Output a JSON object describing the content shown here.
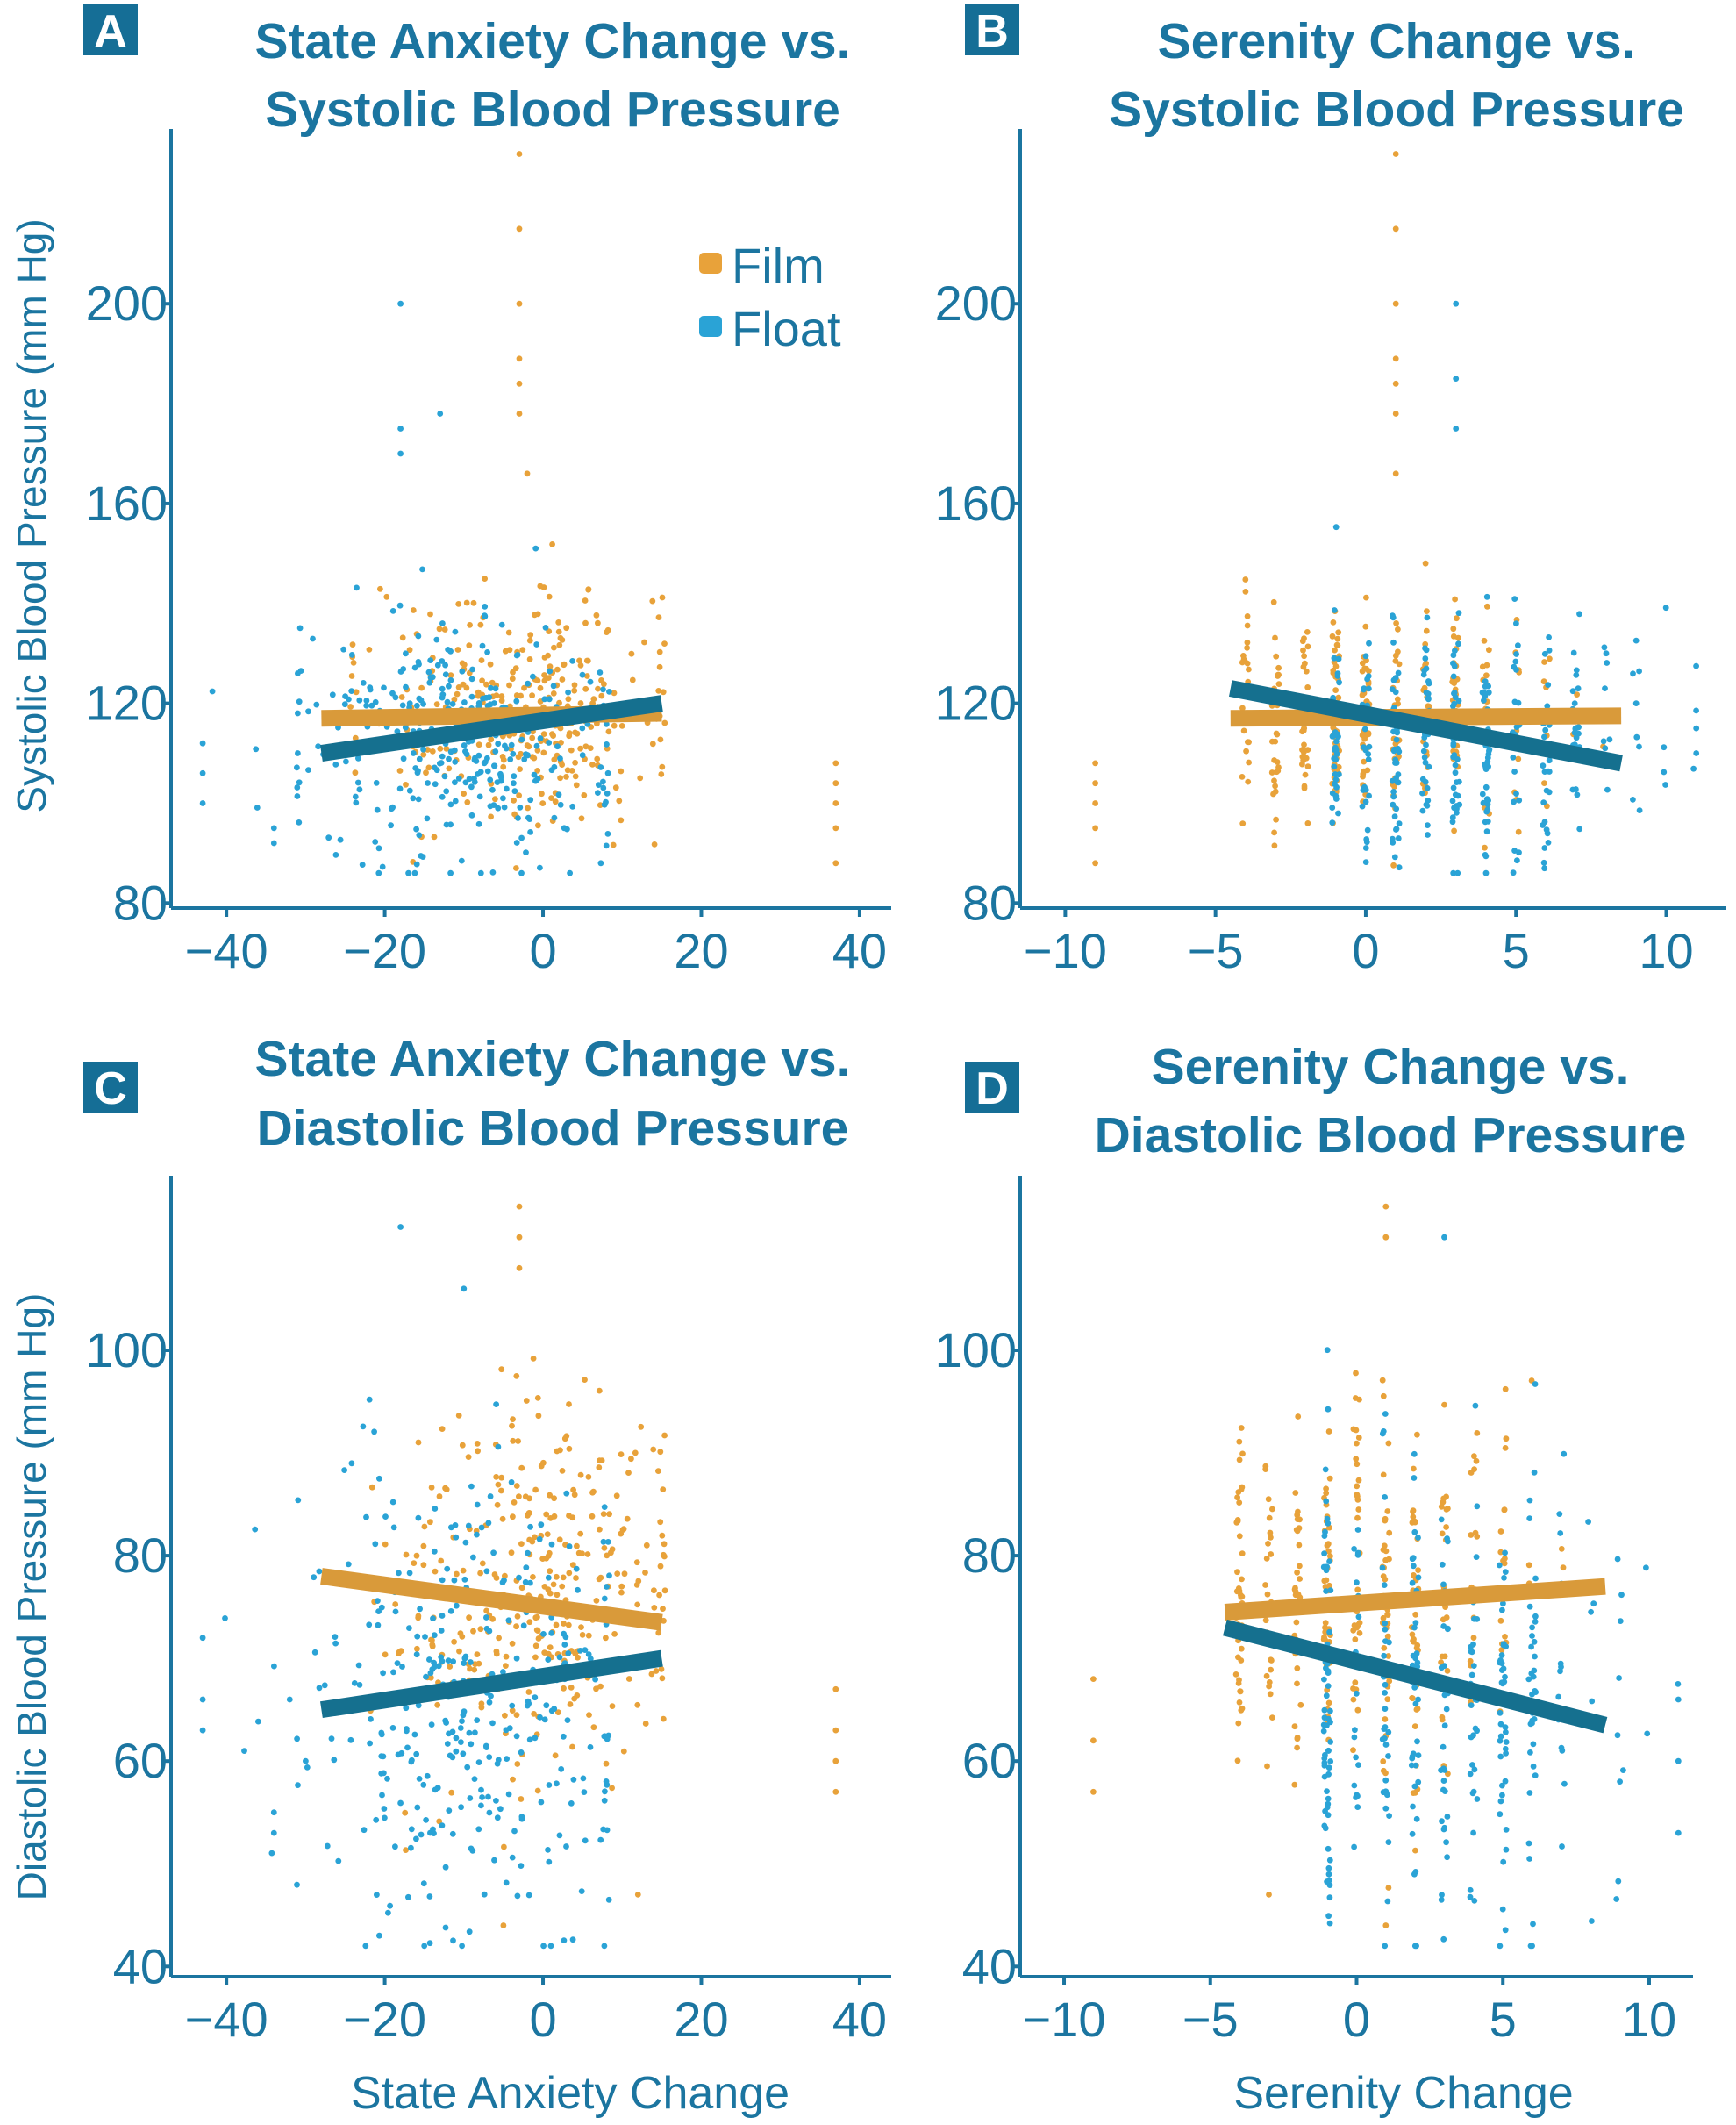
{
  "colors": {
    "film": "#E8A23A",
    "float": "#2AA3D6",
    "film_line": "#D99A3A",
    "float_line": "#15708F",
    "axis": "#1B75A0",
    "badge": "#156E96"
  },
  "legend": {
    "items": [
      "Film",
      "Float"
    ]
  },
  "chart_data": [
    {
      "type": "scatter",
      "panel_label": "A",
      "title": "State Anxiety Change vs.",
      "title2": "Systolic Blood Pressure",
      "xlabel": "",
      "ylabel": "Systolic Blood Pressure (mm Hg)",
      "xlim": [
        -47,
        44
      ],
      "ylim": [
        79,
        235
      ],
      "xticks": [
        -40,
        -20,
        0,
        20,
        40
      ],
      "yticks": [
        80,
        120,
        160,
        200
      ],
      "legend_position": "top-right",
      "series": [
        {
          "name": "Film",
          "x_center": -2,
          "x_spread": 10,
          "y_center": 118,
          "y_spread": 11,
          "x_min": -24,
          "x_max": 15,
          "y_min": 87,
          "y_max": 160,
          "outliers": [
            [
              -3,
              230
            ],
            [
              -3,
              215
            ],
            [
              -3,
              200
            ],
            [
              -3,
              189
            ],
            [
              -3,
              184
            ],
            [
              -3,
              178
            ],
            [
              -2,
              166
            ],
            [
              37,
              108
            ],
            [
              37,
              104
            ],
            [
              37,
              100
            ],
            [
              37,
              95
            ],
            [
              37,
              88
            ]
          ],
          "fit": {
            "x": [
              -28,
              15
            ],
            "y": [
              117,
              118
            ]
          }
        },
        {
          "name": "Float",
          "x_center": -10,
          "x_spread": 10,
          "y_center": 112,
          "y_spread": 12,
          "x_min": -44,
          "x_max": 8,
          "y_min": 86,
          "y_max": 158,
          "outliers": [
            [
              -18,
              200
            ],
            [
              -18,
              175
            ],
            [
              -18,
              170
            ],
            [
              -13,
              178
            ],
            [
              -43,
              112
            ],
            [
              -43,
              106
            ],
            [
              -43,
              100
            ],
            [
              -34,
              95
            ],
            [
              -34,
              92
            ],
            [
              -31,
              126
            ],
            [
              -31,
              118
            ],
            [
              -31,
              110
            ]
          ],
          "fit": {
            "x": [
              -28,
              15
            ],
            "y": [
              110,
              120
            ]
          }
        }
      ]
    },
    {
      "type": "scatter",
      "panel_label": "B",
      "title": "Serenity Change vs.",
      "title2": "Systolic Blood Pressure",
      "xlabel": "",
      "ylabel": "",
      "xlim": [
        -11.5,
        12
      ],
      "ylim": [
        79,
        235
      ],
      "xticks": [
        -10,
        -5,
        0,
        5,
        10
      ],
      "yticks": [
        80,
        120,
        160,
        200
      ],
      "series": [
        {
          "name": "Film",
          "x_center": 0,
          "x_spread": 3,
          "y_center": 118,
          "y_spread": 11,
          "x_min": -4,
          "x_max": 8,
          "y_min": 87,
          "y_max": 160,
          "outliers": [
            [
              1,
              230
            ],
            [
              1,
              215
            ],
            [
              1,
              200
            ],
            [
              1,
              189
            ],
            [
              1,
              184
            ],
            [
              1,
              178
            ],
            [
              1,
              166
            ],
            [
              -9,
              108
            ],
            [
              -9,
              104
            ],
            [
              -9,
              100
            ],
            [
              -9,
              95
            ],
            [
              -9,
              88
            ]
          ],
          "fit": {
            "x": [
              -4.5,
              8.5
            ],
            "y": [
              117,
              117.5
            ]
          }
        },
        {
          "name": "Float",
          "x_center": 3,
          "x_spread": 3,
          "y_center": 112,
          "y_spread": 12,
          "x_min": -1,
          "x_max": 11,
          "y_min": 86,
          "y_max": 158,
          "outliers": [
            [
              3,
              200
            ],
            [
              3,
              185
            ],
            [
              3,
              175
            ],
            [
              11,
              115
            ],
            [
              11,
              110
            ],
            [
              9,
              120
            ],
            [
              8,
              130
            ]
          ],
          "fit": {
            "x": [
              -4.5,
              8.5
            ],
            "y": [
              123,
              108
            ]
          }
        }
      ]
    },
    {
      "type": "scatter",
      "panel_label": "C",
      "title": "State Anxiety Change vs.",
      "title2": "Diastolic Blood Pressure",
      "xlabel": "State Anxiety Change",
      "ylabel": "Diastolic Blood Pressure (mm Hg)",
      "xlim": [
        -47,
        44
      ],
      "ylim": [
        39,
        117
      ],
      "xticks": [
        -40,
        -20,
        0,
        20,
        40
      ],
      "yticks": [
        40,
        60,
        80,
        100
      ],
      "series": [
        {
          "name": "Film",
          "x_center": -2,
          "x_spread": 10,
          "y_center": 75,
          "y_spread": 9,
          "x_min": -22,
          "x_max": 15,
          "y_min": 44,
          "y_max": 110,
          "outliers": [
            [
              -3,
              114
            ],
            [
              -3,
              111
            ],
            [
              -3,
              108
            ],
            [
              37,
              67
            ],
            [
              37,
              63
            ],
            [
              37,
              60
            ],
            [
              37,
              57
            ],
            [
              12,
              47
            ],
            [
              -5,
              44
            ]
          ],
          "fit": {
            "x": [
              -28,
              15
            ],
            "y": [
              78,
              73.5
            ]
          }
        },
        {
          "name": "Float",
          "x_center": -10,
          "x_spread": 10,
          "y_center": 66,
          "y_spread": 11,
          "x_min": -44,
          "x_max": 8,
          "y_min": 42,
          "y_max": 106,
          "outliers": [
            [
              -18,
              112
            ],
            [
              -10,
              106
            ],
            [
              -43,
              72
            ],
            [
              -43,
              66
            ],
            [
              -43,
              63
            ],
            [
              -34,
              55
            ],
            [
              -34,
              53
            ],
            [
              -32,
              66
            ],
            [
              -30,
              60
            ],
            [
              -15,
              42
            ]
          ],
          "fit": {
            "x": [
              -28,
              15
            ],
            "y": [
              65,
              70
            ]
          }
        }
      ]
    },
    {
      "type": "scatter",
      "panel_label": "D",
      "title": "Serenity Change vs.",
      "title2": "Diastolic Blood Pressure",
      "xlabel": "Serenity Change",
      "ylabel": "",
      "xlim": [
        -11.5,
        11.5
      ],
      "ylim": [
        39,
        117
      ],
      "xticks": [
        -10,
        -5,
        0,
        5,
        10
      ],
      "yticks": [
        40,
        60,
        80,
        100
      ],
      "series": [
        {
          "name": "Film",
          "x_center": 0,
          "x_spread": 3,
          "y_center": 76,
          "y_spread": 9,
          "x_min": -4,
          "x_max": 8,
          "y_min": 44,
          "y_max": 110,
          "outliers": [
            [
              1,
              114
            ],
            [
              1,
              111
            ],
            [
              -9,
              68
            ],
            [
              -9,
              62
            ],
            [
              -9,
              57
            ],
            [
              -3,
              47
            ],
            [
              1,
              44
            ]
          ],
          "fit": {
            "x": [
              -4.5,
              8.5
            ],
            "y": [
              74.5,
              77
            ]
          }
        },
        {
          "name": "Float",
          "x_center": 3,
          "x_spread": 3,
          "y_center": 66,
          "y_spread": 11,
          "x_min": -1,
          "x_max": 11,
          "y_min": 42,
          "y_max": 110,
          "outliers": [
            [
              3,
              111
            ],
            [
              11,
              66
            ],
            [
              11,
              60
            ],
            [
              11,
              53
            ],
            [
              9,
              58
            ],
            [
              6,
              42
            ]
          ],
          "fit": {
            "x": [
              -4.5,
              8.5
            ],
            "y": [
              73,
              63.5
            ]
          }
        }
      ]
    }
  ]
}
